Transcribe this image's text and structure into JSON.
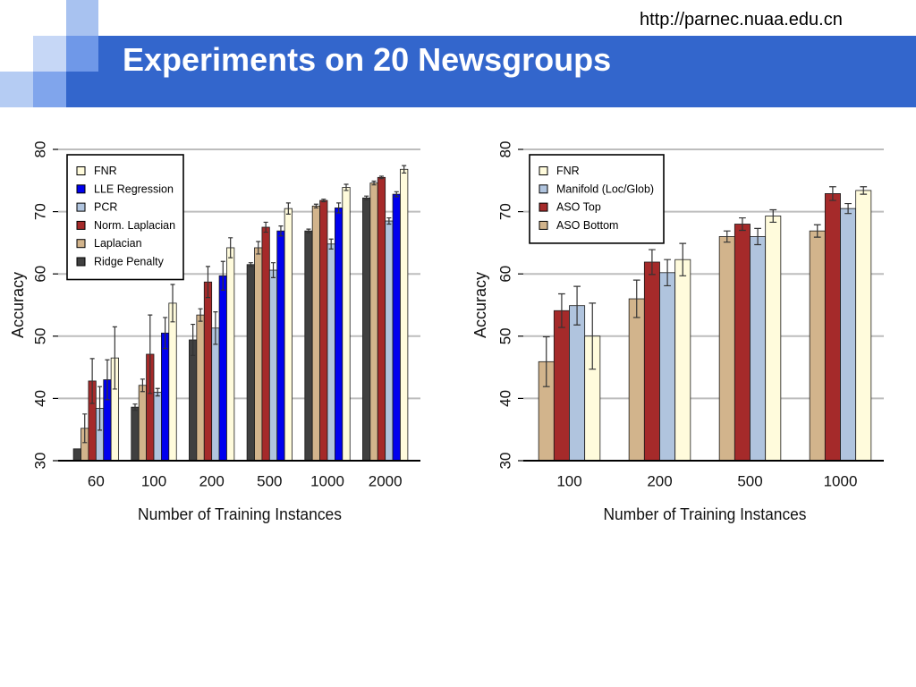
{
  "header": {
    "url": "http://parnec.nuaa.edu.cn",
    "title": "Experiments on 20 Newsgroups"
  },
  "theme": {
    "band": "#3366cc",
    "title_color": "#ffffff"
  },
  "chart_data": [
    {
      "type": "bar",
      "xlabel": "Number of Training Instances",
      "ylabel": "Accuracy",
      "ylim": [
        30,
        80
      ],
      "yticks": [
        30,
        40,
        50,
        60,
        70,
        80
      ],
      "grid": true,
      "legend_position": "top-left",
      "categories": [
        "60",
        "100",
        "200",
        "500",
        "1000",
        "2000"
      ],
      "series": [
        {
          "name": "Ridge Penalty",
          "color": "#404040",
          "values": [
            31.9,
            38.6,
            49.4,
            61.5,
            66.9,
            72.2
          ],
          "errors": [
            0,
            0.5,
            2.5,
            0.3,
            0.3,
            0.3
          ]
        },
        {
          "name": "Laplacian",
          "color": "#d2b48c",
          "values": [
            35.2,
            42.1,
            53.4,
            64.2,
            70.9,
            74.6
          ],
          "errors": [
            2.3,
            1.0,
            1.0,
            1.0,
            0.3,
            0.3
          ]
        },
        {
          "name": "Norm. Laplacian",
          "color": "#a52a2a",
          "values": [
            42.8,
            47.1,
            58.7,
            67.5,
            71.8,
            75.5
          ],
          "errors": [
            3.6,
            6.3,
            2.5,
            0.8,
            0.2,
            0.2
          ]
        },
        {
          "name": "PCR",
          "color": "#b0c4de",
          "values": [
            38.4,
            41.0,
            51.3,
            60.6,
            64.8,
            68.5
          ],
          "errors": [
            3.5,
            0.6,
            2.6,
            1.2,
            0.8,
            0.5
          ]
        },
        {
          "name": "LLE Regression",
          "color": "#0000ee",
          "values": [
            43.0,
            50.5,
            59.7,
            66.9,
            70.6,
            72.8
          ],
          "errors": [
            3.2,
            2.5,
            2.3,
            0.8,
            0.8,
            0.4
          ]
        },
        {
          "name": "FNR",
          "color": "#fffbdc",
          "values": [
            46.5,
            55.3,
            64.2,
            70.5,
            73.9,
            76.8
          ],
          "errors": [
            5.0,
            3.0,
            1.6,
            0.9,
            0.5,
            0.6
          ]
        }
      ]
    },
    {
      "type": "bar",
      "xlabel": "Number of Training Instances",
      "ylabel": "Accuracy",
      "ylim": [
        30,
        80
      ],
      "yticks": [
        30,
        40,
        50,
        60,
        70,
        80
      ],
      "grid": true,
      "legend_position": "top-left",
      "categories": [
        "100",
        "200",
        "500",
        "1000"
      ],
      "series": [
        {
          "name": "ASO Bottom",
          "color": "#d2b48c",
          "values": [
            45.9,
            56.0,
            66.0,
            66.9
          ],
          "errors": [
            4.0,
            3.0,
            0.9,
            1.0
          ]
        },
        {
          "name": "ASO Top",
          "color": "#a52a2a",
          "values": [
            54.1,
            61.9,
            68.0,
            72.9
          ],
          "errors": [
            2.7,
            2.0,
            1.0,
            1.1
          ]
        },
        {
          "name": "Manifold (Loc/Glob)",
          "color": "#b0c4de",
          "values": [
            54.9,
            60.2,
            66.0,
            70.5
          ],
          "errors": [
            3.1,
            2.1,
            1.3,
            0.8
          ]
        },
        {
          "name": "FNR",
          "color": "#fffbdc",
          "values": [
            50.0,
            62.3,
            69.3,
            73.4
          ],
          "errors": [
            5.3,
            2.6,
            1.0,
            0.6
          ]
        }
      ]
    }
  ]
}
